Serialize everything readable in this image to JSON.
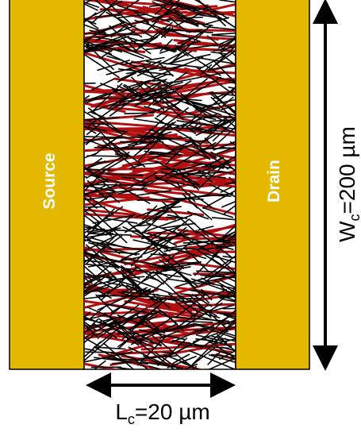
{
  "electrodes": {
    "left": "Source",
    "right": "Drain"
  },
  "width_label": {
    "symbol": "W",
    "subscript": "c",
    "value": "=200 µm"
  },
  "length_label": {
    "symbol": "L",
    "subscript": "c",
    "value": "=20 µm"
  }
}
